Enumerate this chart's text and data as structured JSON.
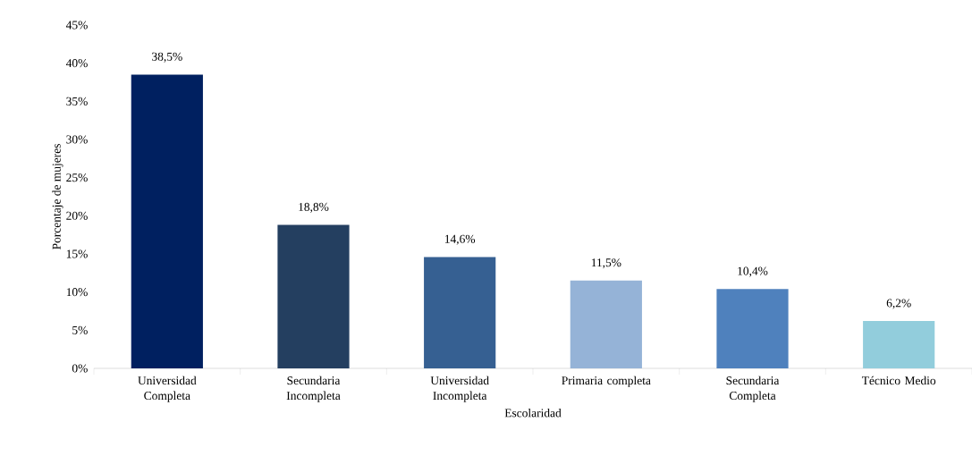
{
  "chart_data": {
    "type": "bar",
    "xlabel": "Escolaridad",
    "ylabel": "Porcentaje de mujeres",
    "categories": [
      "Universidad Completa",
      "Secundaria Incompleta",
      "Universidad Incompleta",
      "Primaria completa",
      "Secundaria Completa",
      "Técnico Medio"
    ],
    "values": [
      38.5,
      18.8,
      14.6,
      11.5,
      10.4,
      6.2
    ],
    "value_labels": [
      "38,5%",
      "18,8%",
      "14,6%",
      "11,5%",
      "10,4%",
      "6,2%"
    ],
    "colors": [
      "#002060",
      "#243f60",
      "#366092",
      "#95b3d7",
      "#4f81bd",
      "#92cddc"
    ],
    "ylim": [
      0,
      45
    ],
    "yticks": [
      {
        "value": 0,
        "label": "0%"
      },
      {
        "value": 5,
        "label": "5%"
      },
      {
        "value": 10,
        "label": "10%"
      },
      {
        "value": 15,
        "label": "15%"
      },
      {
        "value": 20,
        "label": "20%"
      },
      {
        "value": 25,
        "label": "25%"
      },
      {
        "value": 30,
        "label": "30%"
      },
      {
        "value": 35,
        "label": "35%"
      },
      {
        "value": 40,
        "label": "40%"
      },
      {
        "value": 45,
        "label": "45%"
      }
    ],
    "grid": false
  }
}
